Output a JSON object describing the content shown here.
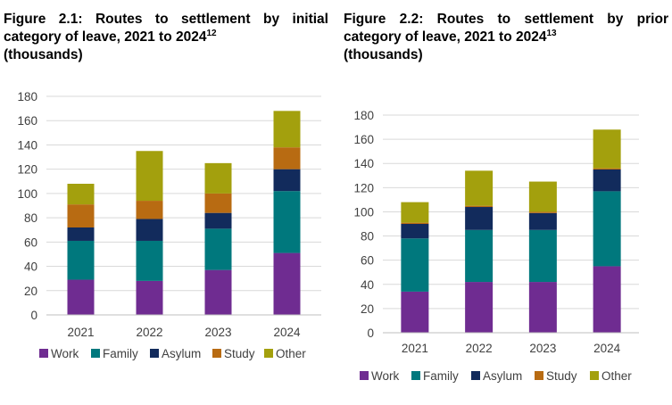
{
  "chart_data": [
    {
      "type": "bar",
      "stacked": true,
      "title_parts": [
        "Figure 2.1: Routes to settlement by initial",
        "category of leave, 2021 to 2024",
        "12",
        "(thousands)"
      ],
      "categories": [
        "2021",
        "2022",
        "2023",
        "2024"
      ],
      "series": [
        {
          "name": "Work",
          "color": "#6f2c91",
          "values": [
            29,
            28,
            37,
            51
          ]
        },
        {
          "name": "Family",
          "color": "#00787d",
          "values": [
            32,
            33,
            34,
            51
          ]
        },
        {
          "name": "Asylum",
          "color": "#122b5c",
          "values": [
            11,
            18,
            13,
            18
          ]
        },
        {
          "name": "Study",
          "color": "#b86b12",
          "values": [
            19,
            15,
            16,
            18
          ]
        },
        {
          "name": "Other",
          "color": "#a3a00d",
          "values": [
            17,
            41,
            25,
            30
          ]
        }
      ],
      "ylim": [
        0,
        180
      ],
      "yticks": [
        "0",
        "20",
        "40",
        "60",
        "80",
        "100",
        "120",
        "140",
        "160",
        "180"
      ],
      "grid": true,
      "legend": "bottom"
    },
    {
      "type": "bar",
      "stacked": true,
      "title_parts": [
        "Figure 2.2: Routes to settlement by prior",
        "category of leave, 2021 to 2024",
        "13",
        "(thousands)"
      ],
      "categories": [
        "2021",
        "2022",
        "2023",
        "2024"
      ],
      "series": [
        {
          "name": "Work",
          "color": "#6f2c91",
          "values": [
            34,
            42,
            42,
            55
          ]
        },
        {
          "name": "Family",
          "color": "#00787d",
          "values": [
            44,
            43,
            43,
            62
          ]
        },
        {
          "name": "Asylum",
          "color": "#122b5c",
          "values": [
            12,
            19,
            14,
            18
          ]
        },
        {
          "name": "Study",
          "color": "#b86b12",
          "values": [
            1,
            1,
            1,
            1
          ]
        },
        {
          "name": "Other",
          "color": "#a3a00d",
          "values": [
            17,
            29,
            25,
            32
          ]
        }
      ],
      "ylim": [
        0,
        180
      ],
      "yticks": [
        "0",
        "20",
        "40",
        "60",
        "80",
        "100",
        "120",
        "140",
        "160",
        "180"
      ],
      "grid": true,
      "legend": "bottom"
    }
  ]
}
